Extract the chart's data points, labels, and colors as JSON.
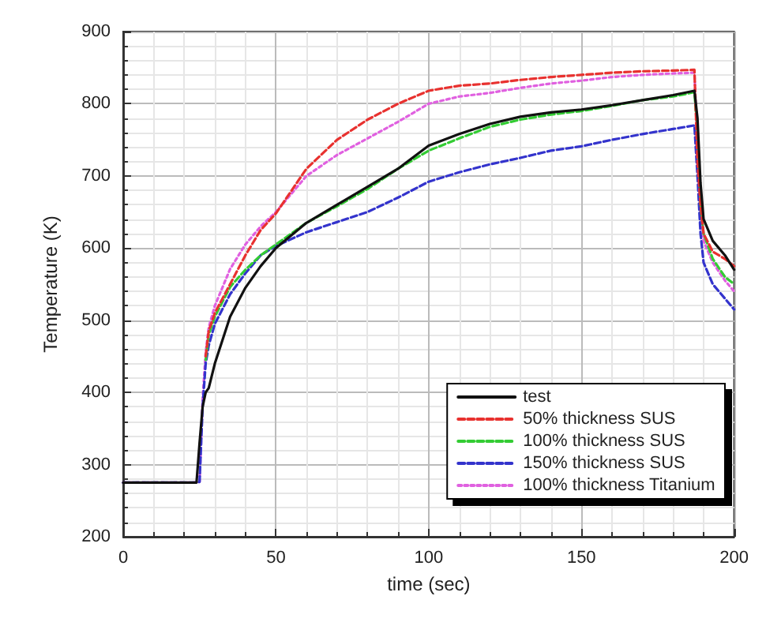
{
  "chart_data": {
    "type": "line",
    "xlabel": "time (sec)",
    "ylabel": "Temperature (K)",
    "xlim": [
      0,
      200
    ],
    "xticks": [
      0,
      50,
      100,
      150,
      200
    ],
    "ylim": [
      200,
      900
    ],
    "yticks": [
      200,
      300,
      400,
      500,
      600,
      700,
      800,
      900
    ],
    "grid": true,
    "legend": "bottom right",
    "marker": "none",
    "x": [
      0,
      24,
      25,
      26,
      27,
      28,
      30,
      35,
      40,
      45,
      50,
      60,
      70,
      80,
      90,
      100,
      110,
      120,
      130,
      140,
      150,
      160,
      170,
      180,
      187,
      188,
      189,
      190,
      193,
      197,
      200
    ],
    "series": [
      {
        "name": "test",
        "color": "#111111",
        "line_style": "solid",
        "values": [
          275,
          275,
          330,
          380,
          400,
          406,
          440,
          505,
          545,
          575,
          600,
          635,
          660,
          685,
          710,
          742,
          758,
          772,
          782,
          788,
          792,
          798,
          805,
          812,
          818,
          780,
          690,
          640,
          610,
          590,
          570
        ]
      },
      {
        "name": "50% thickness SUS",
        "color": "#e8312f",
        "line_style": "dashed",
        "values": [
          null,
          null,
          null,
          null,
          450,
          485,
          510,
          550,
          590,
          625,
          648,
          710,
          750,
          778,
          800,
          818,
          825,
          828,
          833,
          837,
          840,
          843,
          845,
          846,
          847,
          720,
          660,
          620,
          595,
          585,
          575
        ]
      },
      {
        "name": "100% thickness SUS",
        "color": "#33cc33",
        "line_style": "dashed",
        "values": [
          null,
          null,
          null,
          null,
          445,
          480,
          505,
          546,
          570,
          590,
          605,
          635,
          658,
          682,
          710,
          735,
          752,
          768,
          778,
          785,
          790,
          797,
          805,
          810,
          816,
          760,
          660,
          620,
          585,
          560,
          550
        ]
      },
      {
        "name": "150% thickness SUS",
        "color": "#3333cc",
        "line_style": "dashed",
        "values": [
          275,
          275,
          276,
          380,
          440,
          465,
          495,
          536,
          565,
          590,
          603,
          622,
          636,
          650,
          670,
          692,
          705,
          716,
          725,
          735,
          741,
          750,
          758,
          765,
          770,
          700,
          620,
          580,
          550,
          530,
          515
        ]
      },
      {
        "name": "100% thickness Titanium",
        "color": "#e060e0",
        "line_style": "dotted",
        "values": [
          275,
          275,
          276,
          390,
          455,
          490,
          520,
          571,
          605,
          630,
          650,
          700,
          729,
          752,
          775,
          800,
          810,
          815,
          822,
          828,
          832,
          837,
          840,
          842,
          843,
          740,
          650,
          610,
          580,
          555,
          540
        ]
      }
    ]
  }
}
